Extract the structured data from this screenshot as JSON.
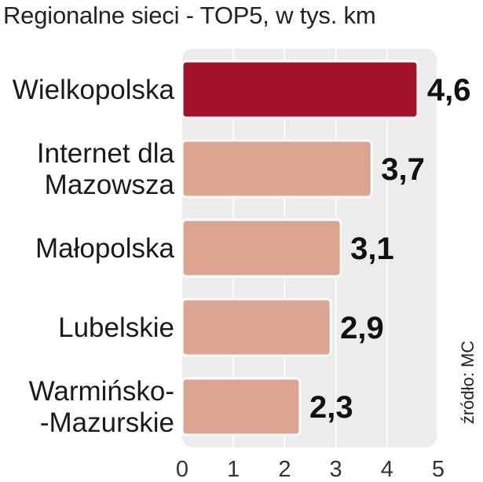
{
  "chart_data": {
    "type": "bar",
    "orientation": "horizontal",
    "title": "Regionalne sieci - TOP5, w tys. km",
    "source": "źródło: MC",
    "categories": [
      [
        "Wielkopolska"
      ],
      [
        "Internet dla",
        "Mazowsza"
      ],
      [
        "Małopolska"
      ],
      [
        "Lubelskie"
      ],
      [
        "Warmińsko-",
        "-Mazurskie"
      ]
    ],
    "values": [
      4.6,
      3.7,
      3.1,
      2.9,
      2.3
    ],
    "value_labels": [
      "4,6",
      "3,7",
      "3,1",
      "2,9",
      "2,3"
    ],
    "xlim": [
      0,
      5
    ],
    "xticks": [
      0,
      1,
      2,
      3,
      4,
      5
    ],
    "grid": true,
    "xlabel": "",
    "ylabel": "",
    "colors": {
      "highlight": "#a3122a",
      "bar": "#dba592",
      "bar_border": "#ffffff",
      "plot_background": "#ececec",
      "gridline": "#ffffff"
    },
    "highlight_index": 0
  }
}
